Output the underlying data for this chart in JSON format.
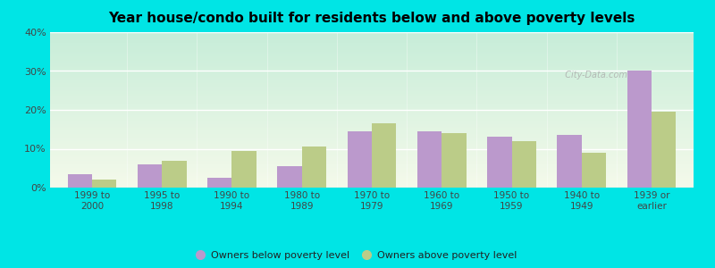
{
  "title": "Year house/condo built for residents below and above poverty levels",
  "categories": [
    "1999 to\n2000",
    "1995 to\n1998",
    "1990 to\n1994",
    "1980 to\n1989",
    "1970 to\n1979",
    "1960 to\n1969",
    "1950 to\n1959",
    "1940 to\n1949",
    "1939 or\nearlier"
  ],
  "below_poverty": [
    3.5,
    6.0,
    2.5,
    5.5,
    14.5,
    14.5,
    13.0,
    13.5,
    30.0
  ],
  "above_poverty": [
    2.0,
    7.0,
    9.5,
    10.5,
    16.5,
    14.0,
    12.0,
    9.0,
    19.5
  ],
  "below_color": "#bb99cc",
  "above_color": "#bbcc88",
  "background_outer": "#00e5e5",
  "ylim": [
    0,
    40
  ],
  "yticks": [
    0,
    10,
    20,
    30,
    40
  ],
  "bar_width": 0.35,
  "legend_below_label": "Owners below poverty level",
  "legend_above_label": "Owners above poverty level",
  "title_fontsize": 11,
  "tick_fontsize": 7.5,
  "ytick_fontsize": 8
}
